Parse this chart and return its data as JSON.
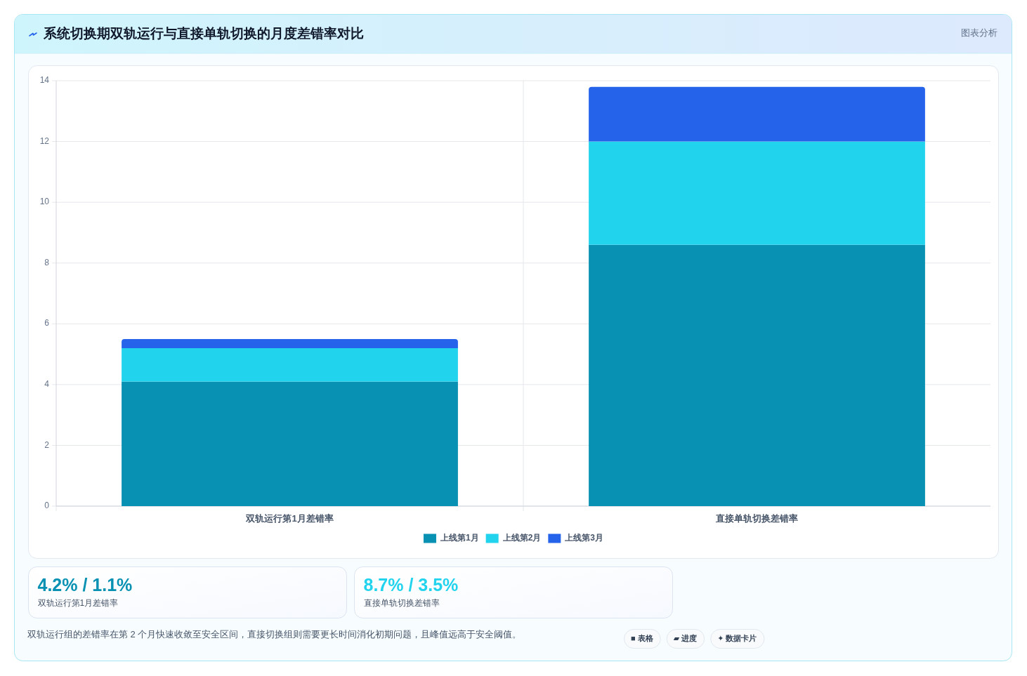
{
  "chart_data": {
    "type": "bar",
    "title": "系统切换期双轨运行与直接单轨切换的月度差错率对比",
    "categories": [
      "双轨运行第1月差错率",
      "直接单轨切换差错率"
    ],
    "series": [
      {
        "name": "上线第1月",
        "color": "#0891b2",
        "values": [
          4.1,
          8.6
        ]
      },
      {
        "name": "上线第2月",
        "color": "#22d3ee",
        "values": [
          1.1,
          3.4
        ]
      },
      {
        "name": "上线第3月",
        "color": "#2563eb",
        "values": [
          0.3,
          1.8
        ]
      }
    ],
    "stacked": true,
    "ylim": [
      0,
      14
    ],
    "yticks": [
      0,
      2,
      4,
      6,
      8,
      10,
      12,
      14
    ],
    "grid": true,
    "legend": "bottom",
    "annotations": [
      "图表分析",
      "4.2% / 1.1%",
      "双轨运行第1月差错率",
      "8.7% / 3.5%",
      "直接单轨切换差错率",
      "双轨运行组的差错率在第 2 个月快速收敛至安全区间，直接切换组则需要更长时间消化初期问题，且峰值远高于安全阈值。",
      "■ 表格",
      "▰ 进度",
      "✦ 数据卡片"
    ]
  }
}
